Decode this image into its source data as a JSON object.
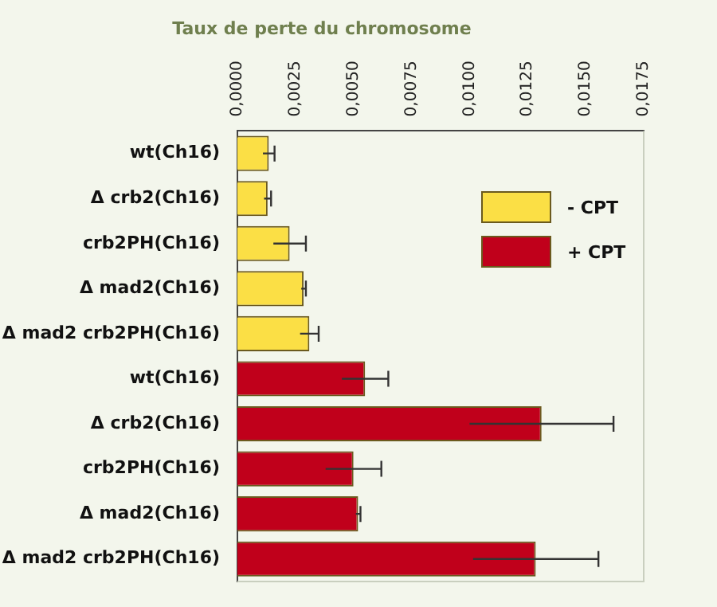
{
  "chart_data": {
    "type": "bar",
    "orientation": "horizontal",
    "title": "Taux de perte du chromosome",
    "categories": [
      "wt(Ch16)",
      "Δ crb2(Ch16)",
      "crb2PH(Ch16)",
      "Δ mad2(Ch16)",
      "Δ mad2 crb2PH(Ch16)",
      "wt(Ch16)",
      "Δ crb2(Ch16)",
      "crb2PH(Ch16)",
      "Δ mad2(Ch16)",
      "Δ mad2 crb2PH(Ch16)"
    ],
    "series": [
      {
        "name": "- CPT",
        "color": "#fbdf45",
        "values": [
          0.00135,
          0.0013,
          0.00225,
          0.00285,
          0.0031,
          null,
          null,
          null,
          null,
          null
        ],
        "errors": [
          0.00025,
          0.00015,
          0.0007,
          0.0001,
          0.0004,
          null,
          null,
          null,
          null,
          null
        ]
      },
      {
        "name": "+ CPT",
        "color": "#c0001b",
        "values": [
          null,
          null,
          null,
          null,
          null,
          0.0055,
          0.0131,
          0.005,
          0.0052,
          0.01285
        ],
        "errors": [
          null,
          null,
          null,
          null,
          null,
          0.001,
          0.0031,
          0.0012,
          0.0001,
          0.0027
        ]
      }
    ],
    "xlim": [
      0,
      0.0175
    ],
    "xticks": [
      {
        "value": 0,
        "label": "0,0000"
      },
      {
        "value": 0.0025,
        "label": "0,0025"
      },
      {
        "value": 0.005,
        "label": "0,0050"
      },
      {
        "value": 0.0075,
        "label": "0,0075"
      },
      {
        "value": 0.01,
        "label": "0,0100"
      },
      {
        "value": 0.0125,
        "label": "0,0125"
      },
      {
        "value": 0.015,
        "label": "0,0150"
      },
      {
        "value": 0.0175,
        "label": "0,0175"
      }
    ],
    "grid": false,
    "legend": "top right"
  }
}
